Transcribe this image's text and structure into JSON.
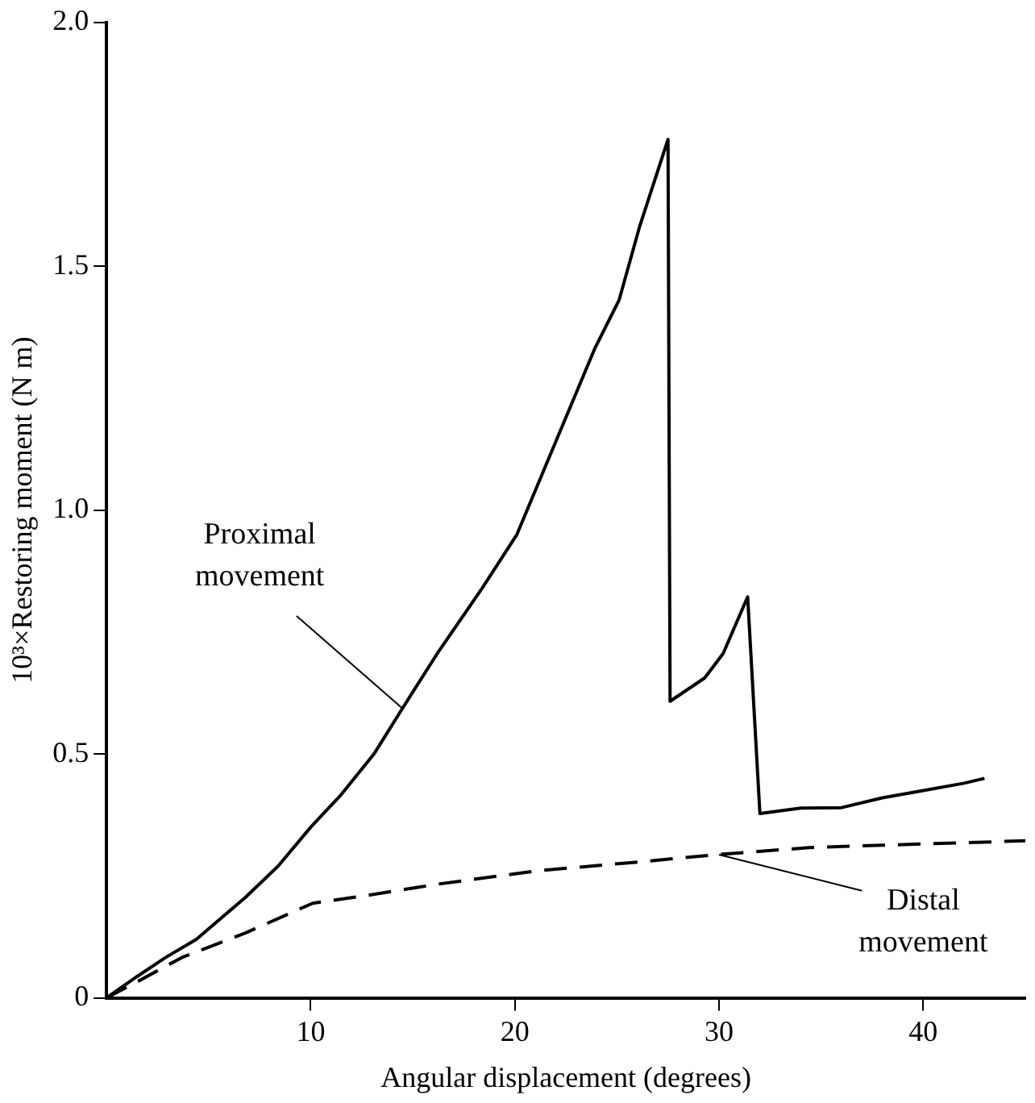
{
  "chart_data": {
    "type": "line",
    "xlabel": "Angular displacement (degrees)",
    "ylabel": "10³×Restoring moment (N m)",
    "xlim": [
      0,
      45
    ],
    "xticks": [
      10,
      20,
      30,
      40
    ],
    "ylim": [
      0,
      2
    ],
    "yticks": [
      {
        "value": 0,
        "label": "0"
      },
      {
        "value": 0.5,
        "label": "0.5"
      },
      {
        "value": 1,
        "label": "1.0"
      },
      {
        "value": 1.5,
        "label": "1.5"
      },
      {
        "value": 2,
        "label": "2.0"
      }
    ],
    "grid": false,
    "legend": false,
    "marker": "none",
    "series": [
      {
        "color": "#000000",
        "line_style": "solid",
        "x": [
          0,
          1.5,
          2.9,
          4.4,
          5.4,
          6.8,
          8.4,
          10,
          11.5,
          13.1,
          14.5,
          16.2,
          18.4,
          20.1,
          22.2,
          23.9,
          25.1,
          26.1,
          27.5,
          27.6,
          29.3,
          30.2,
          31.4,
          32,
          34,
          36,
          38,
          40,
          42,
          43
        ],
        "values": [
          0,
          0.044,
          0.083,
          0.12,
          0.156,
          0.206,
          0.27,
          0.35,
          0.417,
          0.5,
          0.594,
          0.706,
          0.84,
          0.95,
          1.16,
          1.33,
          1.43,
          1.58,
          1.76,
          0.608,
          0.656,
          0.706,
          0.822,
          0.378,
          0.389,
          0.39,
          0.41,
          0.425,
          0.44,
          0.45
        ]
      },
      {
        "color": "#000000",
        "line_style": "dashed",
        "x": [
          0,
          1.5,
          3.7,
          6.8,
          10.1,
          12.9,
          16.2,
          21.2,
          25.9,
          30,
          34.4,
          38,
          42,
          45
        ],
        "values": [
          0,
          0.033,
          0.083,
          0.133,
          0.194,
          0.211,
          0.233,
          0.261,
          0.278,
          0.294,
          0.308,
          0.313,
          0.318,
          0.322
        ]
      }
    ],
    "annotations": [
      {
        "text": "Proximal movement",
        "x": 14.5,
        "y": 0.594
      },
      {
        "text": "Distal movement",
        "x": 30,
        "y": 0.294
      }
    ]
  }
}
